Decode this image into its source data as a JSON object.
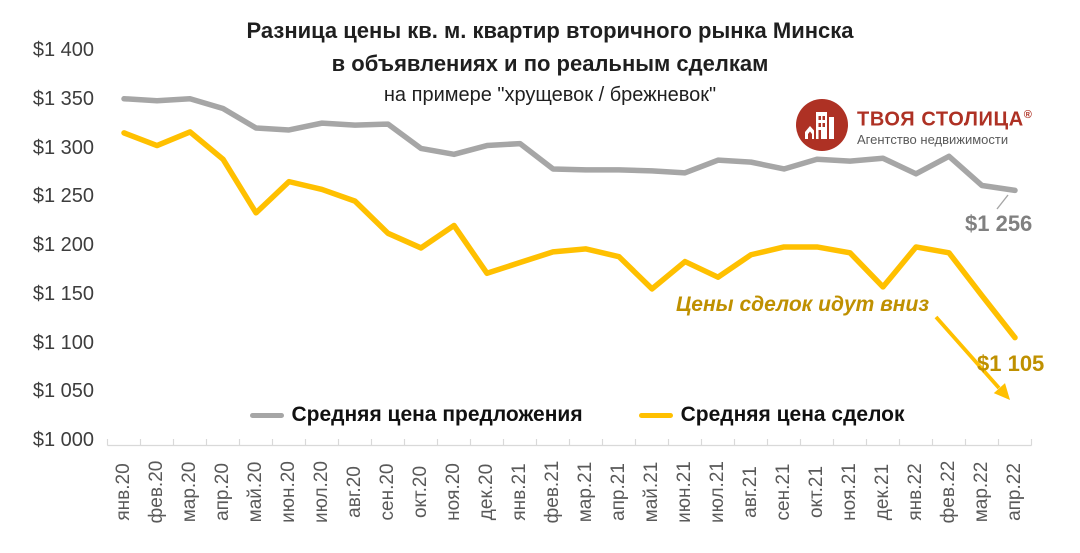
{
  "title": {
    "line1": "Разница цены кв. м. квартир вторичного рынка Минска",
    "line2": "в объявлениях и по реальным сделкам",
    "line3": "на примере \"хрущевок / брежневок\""
  },
  "logo": {
    "name": "ТВОЯ СТОЛИЦА",
    "reg_mark": "®",
    "tagline": "Агентство недвижимости",
    "brand_color": "#AE3124",
    "tagline_color": "#595959"
  },
  "chart_data": {
    "type": "line",
    "categories": [
      "янв.20",
      "фев.20",
      "мар.20",
      "апр.20",
      "май.20",
      "июн.20",
      "июл.20",
      "авг.20",
      "сен.20",
      "окт.20",
      "ноя.20",
      "дек.20",
      "янв.21",
      "фев.21",
      "мар.21",
      "апр.21",
      "май.21",
      "июн.21",
      "июл.21",
      "авг.21",
      "сен.21",
      "окт.21",
      "ноя.21",
      "дек.21",
      "янв.22",
      "фев.22",
      "мар.22",
      "апр.22"
    ],
    "series": [
      {
        "name": "Средняя цена предложения",
        "color": "#A6A6A6",
        "values": [
          1350,
          1348,
          1350,
          1340,
          1320,
          1318,
          1325,
          1323,
          1324,
          1299,
          1293,
          1302,
          1304,
          1278,
          1277,
          1277,
          1276,
          1274,
          1287,
          1285,
          1278,
          1288,
          1286,
          1289,
          1273,
          1291,
          1261,
          1256
        ]
      },
      {
        "name": "Средняя цена сделок",
        "color": "#FFC000",
        "values": [
          1315,
          1302,
          1316,
          1288,
          1233,
          1265,
          1257,
          1245,
          1212,
          1197,
          1220,
          1171,
          1182,
          1193,
          1196,
          1188,
          1155,
          1183,
          1167,
          1190,
          1198,
          1198,
          1192,
          1157,
          1198,
          1192,
          1148,
          1105
        ]
      }
    ],
    "ylim": [
      1000,
      1400
    ],
    "ytick_step": 50,
    "ytick_labels": [
      "$1 000",
      "$1 050",
      "$1 100",
      "$1 150",
      "$1 200",
      "$1 250",
      "$1 300",
      "$1 350",
      "$1 400"
    ],
    "grid": false,
    "legend_position": "bottom",
    "axis_color": "#D9D9D9",
    "end_labels": {
      "offer_text": "$1 256",
      "offer_color": "#808080",
      "deal_text": "$1 105",
      "deal_color": "#BF9000"
    },
    "annotation": {
      "text": "Цены сделок идут вниз",
      "color": "#BF9000",
      "arrow_color": "#FFC000"
    }
  }
}
